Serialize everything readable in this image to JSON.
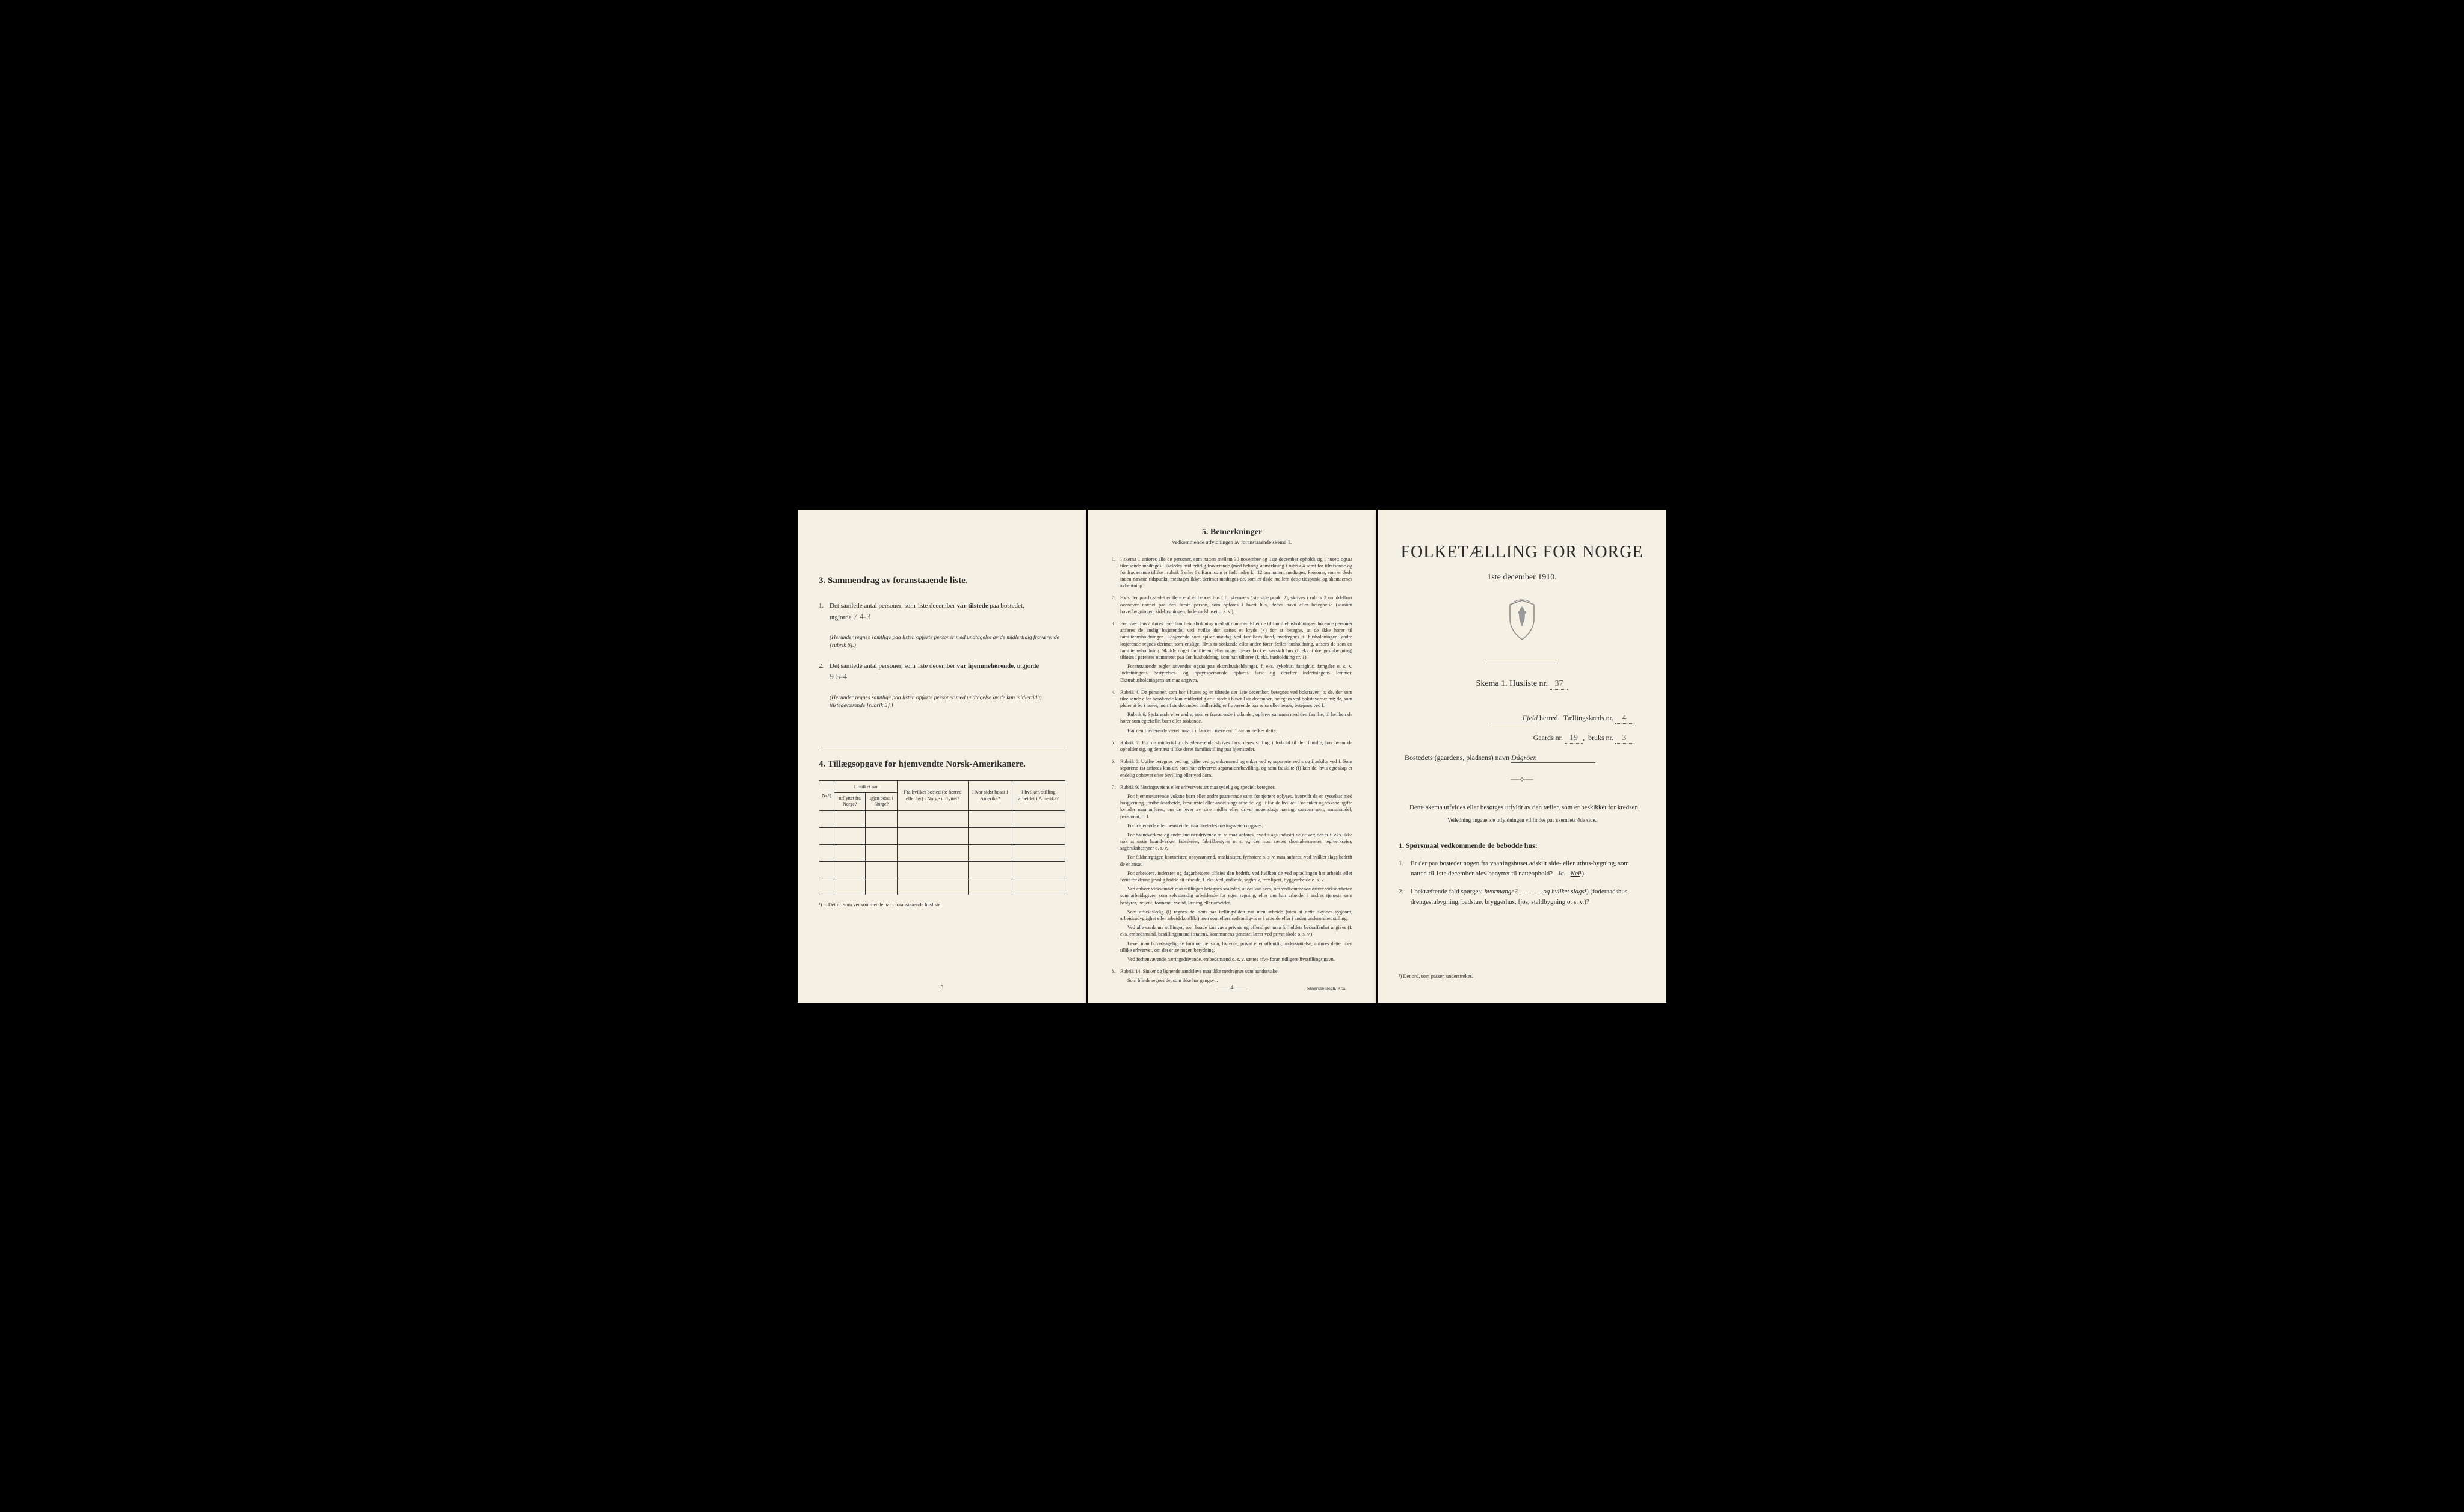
{
  "page1": {
    "section3": {
      "heading": "3.  Sammendrag av foranstaaende liste.",
      "item1": {
        "num": "1.",
        "text_before": "Det samlede antal personer, som 1ste december ",
        "bold1": "var tilstede",
        "text_mid": " paa bostedet,",
        "utgjorde_label": "utgjorde",
        "written_value": "7    4-3",
        "note": "(Herunder regnes samtlige paa listen opførte personer med undtagelse av de midlertidig fraværende [rubrik 6].)"
      },
      "item2": {
        "num": "2.",
        "text_before": "Det samlede antal personer, som 1ste december ",
        "bold1": "var hjemmehørende",
        "text_after": ", utgjorde",
        "written_value": "9    5-4",
        "note": "(Herunder regnes samtlige paa listen opførte personer med undtagelse av de kun midlertidig tilstedeværende [rubrik 5].)"
      }
    },
    "section4": {
      "heading": "4.  Tillægsopgave for hjemvendte Norsk-Amerikanere.",
      "headers": {
        "nr": "Nr.¹)",
        "hvilket_aar": "I hvilket aar",
        "utflyttet": "utflyttet fra Norge?",
        "igjen": "igjen bosat i Norge?",
        "fra_bosted": "Fra hvilket bosted (ɔ: herred eller by) i Norge utflyttet?",
        "hvor_sidst": "Hvor sidst bosat i Amerika?",
        "stilling": "I hvilken stilling arbeidet i Amerika?"
      },
      "footnote": "¹) ɔ: Det nr. som vedkommende har i foranstaaende husliste."
    },
    "page_num": "3"
  },
  "page2": {
    "title": "5.  Bemerkninger",
    "subtitle": "vedkommende utfyldningen av foranstaaende skema 1.",
    "items": [
      {
        "num": "1.",
        "text": "I skema 1 anføres alle de personer, som natten mellem 30 november og 1ste december opholdt sig i huset; ogsaa tilreisende medtages; likeledes midlertidig fraværende (med behørig anmerkning i rubrik 4 samt for tilreisende og for fraværende tillike i rubrik 5 eller 6). Barn, som er født inden kl. 12 om natten, medtages. Personer, som er døde inden nævnte tidspunkt, medtages ikke; derimot medtages de, som er døde mellem dette tidspunkt og skemaernes avhentning."
      },
      {
        "num": "2.",
        "text": "Hvis der paa bostedet er flere end ét beboet hus (jfr. skemaets 1ste side punkt 2), skrives i rubrik 2 umiddelbart ovenover navnet paa den første person, som opføres i hvert hus, dettes navn eller betegnelse (saasom hovedbygningen, sidebygningen, føderaadshuset o. s. v.)."
      },
      {
        "num": "3.",
        "text": "For hvert hus anføres hver familiehusholdning med sit nummer. Efter de til familiehusholdningen hørende personer anføres de enslig losjerende, ved hvilke der sættes et kryds (×) for at betegne, at de ikke hører til familiehusholdningen. Losjerende som spiser middag ved familiens bord, medregnes til husholdningen; andre losjerende regnes derimot som enslige. Hvis to søskende eller andre fører fælles husholdning, ansees de som en familiehusholdning. Skulde noget familielem eller nogen tjener bo i et særskilt hus (f. eks. i drengestubygning) tilføies i parentes nummeret paa den husholdning, som han tilhører (f. eks. husholdning nr. 1).",
        "extra": [
          "Foranstaaende regler anvendes ogsaa paa ekstrahusholdninger, f. eks. sykehus, fattighus, fængsler o. s. v. Indretningens bestyrelses- og opsynspersonale opføres først og derefter indretningens lemmer. Ekstrahusholdningens art maa angives."
        ]
      },
      {
        "num": "4.",
        "text": "Rubrik 4. De personer, som bor i huset og er tilstede der 1ste december, betegnes ved bokstaven: b; de, der som tilreisende eller besøkende kun midlertidig er tilstede i huset 1ste december, betegnes ved bokstaverne: mt; de, som pleier at bo i huset, men 1ste december midlertidig er fraværende paa reise eller besøk, betegnes ved f.",
        "extra": [
          "Rubrik 6. Sjøfarende eller andre, som er fraværende i utlandet, opføres sammen med den familie, til hvilken de hører som egtefælle, barn eller søskende.",
          "Har den fraværende været bosat i utlandet i mere end 1 aar anmerkes dette."
        ]
      },
      {
        "num": "5.",
        "text": "Rubrik 7. For de midlertidig tilstedeværende skrives først deres stilling i forhold til den familie, hos hvem de opholder sig, og dernæst tillike deres familiestilling paa hjemstedet."
      },
      {
        "num": "6.",
        "text": "Rubrik 8. Ugifte betegnes ved ug, gifte ved g, enkemænd og enker ved e, separerte ved s og fraskilte ved f. Som separerte (s) anføres kun de, som har erhvervet separationsbevilling, og som fraskilte (f) kun de, hvis egteskap er endelig ophævet efter bevilling eller ved dom."
      },
      {
        "num": "7.",
        "text": "Rubrik 9. Næringsveiens eller erhvervets art maa tydelig og specielt betegnes.",
        "extra": [
          "For hjemmeværende voksne barn eller andre paarørende samt for tjenere oplyses, hvorvidt de er sysselsat med husgjerning, jordbruksarbeide, kreaturstel eller andet slags arbeide, og i tilfælde hvilket. For enker og voksne ugifte kvinder maa anføres, om de lever av sine midler eller driver nogenslags næring, saasom søm, smaahandel, pensionat, o. l.",
          "For losjerende eller besøkende maa likeledes næringsveien opgives.",
          "For haandverkere og andre industridrivende m. v. maa anføres, hvad slags industri de driver; det er f. eks. ikke nok at sætte haandverker, fabrikeier, fabrikbestyrer o. s. v.; der maa sættes skomakermester, teglverkseier, sagbruksbestyrer o. s. v.",
          "For fuldmægtiger, kontorister, opsynsmænd, maskinister, fyrbøtere o. s. v. maa anføres, ved hvilket slags bedrift de er ansat.",
          "For arbeidere, inderster og dagarbeidere tilføies den bedrift, ved hvilken de ved optællingen har arbeide eller forut for denne jevnlig hadde sit arbeide, f. eks. ved jordbruk, sagbruk, træsliperi, byggearbeide o. s. v.",
          "Ved enhver virksomhet maa stillingen betegnes saaledes, at det kan sees, om vedkommende driver virksomheten som arbeidsgiver, som selvstændig arbeidende for egen regning, eller om han arbeider i andres tjeneste som bestyrer, betjent, formand, svend, lærling eller arbeider.",
          "Som arbeidsledig (l) regnes de, som paa tællingstiden var uten arbeide (uten at dette skyldes sygdom, arbeidsudygtighet eller arbeidskonflikt) men som ellers sedvanligvis er i arbeide eller i anden underordnet stilling.",
          "Ved alle saadanne stillinger, som baade kan være private og offentlige, maa forholdets beskaffenhet angives (f. eks. embedsmand, bestillingsmand i statens, kommunens tjeneste, lærer ved privat skole o. s. v.).",
          "Lever man hovedsagelig av formue, pension, livrente, privat eller offentlig understøttelse, anføres dette, men tillike erhvervet, om det er av nogen betydning.",
          "Ved forhenværende næringsdrivende, embedsmænd o. s. v. sættes «fv» foran tidligere livsstillings navn."
        ]
      },
      {
        "num": "8.",
        "text": "Rubrik 14. Sinker og lignende aandsløve maa ikke medregnes som aandssvake.",
        "extra": [
          "Som blinde regnes de, som ikke har gangsyn."
        ]
      }
    ],
    "page_num": "4",
    "printer": "Steen'ske Bogtr. Kr.a."
  },
  "page3": {
    "title": "FOLKETÆLLING FOR NORGE",
    "date": "1ste december 1910.",
    "skema": "Skema 1.  Husliste nr.",
    "husliste_nr": "37",
    "herred_name": "Fjeld",
    "herred_label": "herred.",
    "tallingskreds_label": "Tællingskreds nr.",
    "tallingskreds_nr": "4",
    "gaards_label": "Gaards nr.",
    "gaards_nr": "19",
    "bruks_label": "bruks nr.",
    "bruks_nr": "3",
    "bosted_label": "Bostedets (gaardens, pladsens) navn",
    "bosted_name": "Dågröen",
    "instruction1": "Dette skema utfyldes eller besørges utfyldt av den tæller, som er beskikket for kredsen.",
    "instruction2": "Veiledning angaaende utfyldningen vil findes paa skemaets 4de side.",
    "sporsmaal_heading": "1. Spørsmaal vedkommende de bebodde hus:",
    "q1": {
      "num": "1.",
      "text": "Er der paa bostedet nogen fra vaaningshuset adskilt side- eller uthus-bygning, som natten til 1ste december blev benyttet til natteophold?",
      "ja": "Ja.",
      "nei": "Nei",
      "sup": "¹)."
    },
    "q2": {
      "num": "2.",
      "text_start": "I bekræftende fald spørges: ",
      "hvormange": "hvormange?",
      "og": " og ",
      "hvilket": "hvilket slags",
      "sup": "¹)",
      "text_end": "(føderaadshus, drengestubygning, badstue, bryggerhus, fjøs, staldbygning o. s. v.)?"
    },
    "footnote": "¹) Det ord, som passer, understrekes."
  }
}
